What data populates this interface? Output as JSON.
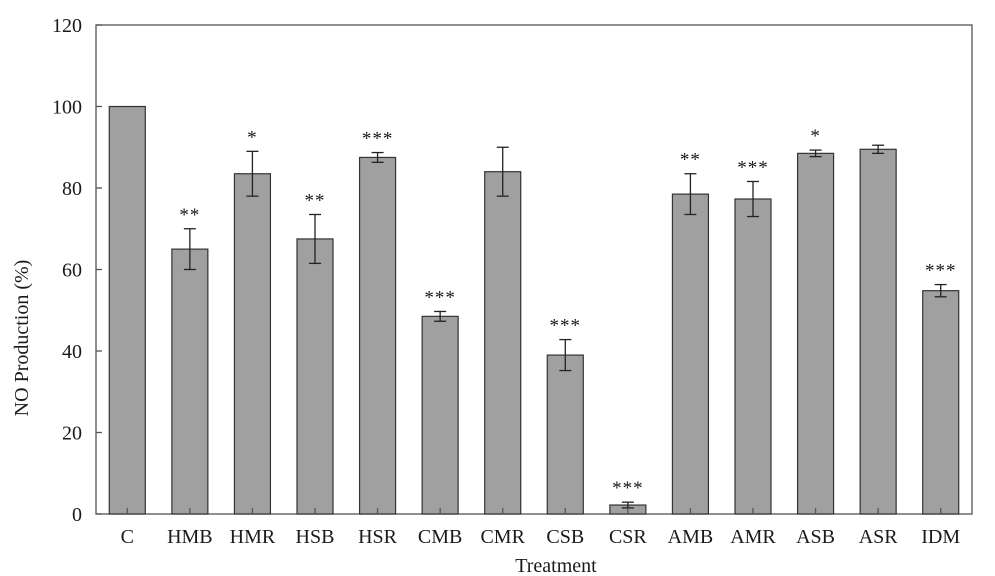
{
  "chart_data": {
    "type": "bar",
    "title": "",
    "xlabel": "Treatment",
    "ylabel": "NO Production (%)",
    "ylim": [
      0,
      120
    ],
    "yticks": [
      0,
      20,
      40,
      60,
      80,
      100,
      120
    ],
    "grid": false,
    "legend": "none",
    "bar_color": "#a0a0a0",
    "categories": [
      "C",
      "HMB",
      "HMR",
      "HSB",
      "HSR",
      "CMB",
      "CMR",
      "CSB",
      "CSR",
      "AMB",
      "AMR",
      "ASB",
      "ASR",
      "IDM"
    ],
    "values": [
      100,
      65,
      83.5,
      67.5,
      87.5,
      48.5,
      84,
      39,
      2.2,
      78.5,
      77.3,
      88.5,
      89.5,
      54.8
    ],
    "error": [
      0,
      5,
      5.5,
      6,
      1.2,
      1.2,
      6,
      3.8,
      0.7,
      5,
      4.3,
      0.8,
      1,
      1.5
    ],
    "significance": [
      "",
      "**",
      "*",
      "**",
      "***",
      "***",
      "",
      "***",
      "***",
      "**",
      "***",
      "*",
      "",
      "***"
    ]
  }
}
